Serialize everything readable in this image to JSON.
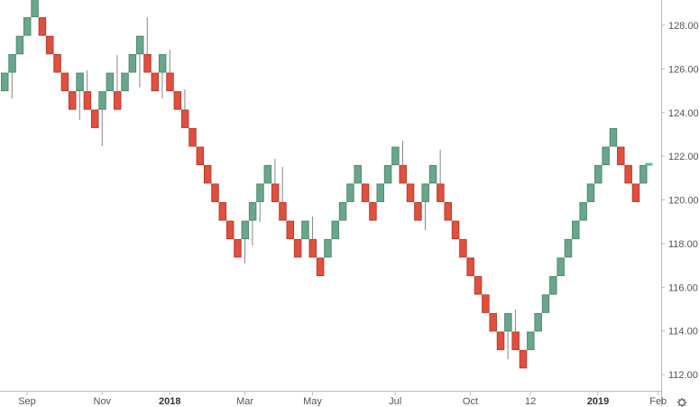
{
  "chart_data": {
    "type": "renko",
    "title": "",
    "xlabel": "",
    "ylabel": "",
    "ylim": [
      111.4,
      129.15
    ],
    "grid": false,
    "brick_size": 0.847,
    "colors": {
      "up": "#6aa68b",
      "up_border": "#4f8a70",
      "down": "#e0503f",
      "down_border": "#b93a2c",
      "current": "#3cc9a3",
      "axis": "#bbbbbb"
    },
    "y_ticks": [
      "112.00",
      "114.00",
      "116.00",
      "118.00",
      "120.00",
      "122.00",
      "124.00",
      "126.00",
      "128.00"
    ],
    "x_ticks": [
      {
        "label": "Sep",
        "bold": false,
        "col": 4
      },
      {
        "label": "Nov",
        "bold": false,
        "col": 14
      },
      {
        "label": "2018",
        "bold": true,
        "col": 23
      },
      {
        "label": "Mar",
        "bold": false,
        "col": 33
      },
      {
        "label": "May",
        "bold": false,
        "col": 42
      },
      {
        "label": "Jul",
        "bold": false,
        "col": 53
      },
      {
        "label": "Oct",
        "bold": false,
        "col": 63
      },
      {
        "label": "12",
        "bold": false,
        "col": 71
      },
      {
        "label": "2019",
        "bold": true,
        "col": 80
      },
      {
        "label": "Feb",
        "bold": false,
        "col": 88
      }
    ],
    "bricks": [
      {
        "low": 124.98,
        "dir": "up"
      },
      {
        "low": 125.83,
        "dir": "up",
        "wick_low": 124.65
      },
      {
        "low": 126.67,
        "dir": "up"
      },
      {
        "low": 127.52,
        "dir": "up"
      },
      {
        "low": 128.37,
        "dir": "up"
      },
      {
        "low": 127.52,
        "dir": "down"
      },
      {
        "low": 126.67,
        "dir": "down"
      },
      {
        "low": 125.83,
        "dir": "down"
      },
      {
        "low": 124.98,
        "dir": "down"
      },
      {
        "low": 124.13,
        "dir": "down"
      },
      {
        "low": 124.98,
        "dir": "up",
        "wick_low": 123.66
      },
      {
        "low": 124.13,
        "dir": "down",
        "wick_high": 125.93
      },
      {
        "low": 123.29,
        "dir": "down"
      },
      {
        "low": 124.13,
        "dir": "up",
        "wick_low": 122.46
      },
      {
        "low": 124.98,
        "dir": "up"
      },
      {
        "low": 124.13,
        "dir": "down",
        "wick_high": 126.64
      },
      {
        "low": 124.98,
        "dir": "up"
      },
      {
        "low": 125.83,
        "dir": "up"
      },
      {
        "low": 126.67,
        "dir": "up",
        "wick_low": 125.15
      },
      {
        "low": 125.83,
        "dir": "down",
        "wick_high": 128.37
      },
      {
        "low": 124.98,
        "dir": "down"
      },
      {
        "low": 125.83,
        "dir": "up",
        "wick_low": 124.65
      },
      {
        "low": 124.98,
        "dir": "down",
        "wick_high": 126.88
      },
      {
        "low": 124.13,
        "dir": "down"
      },
      {
        "low": 123.29,
        "dir": "down",
        "wick_high": 125.06
      },
      {
        "low": 122.44,
        "dir": "down"
      },
      {
        "low": 121.59,
        "dir": "down"
      },
      {
        "low": 120.75,
        "dir": "down"
      },
      {
        "low": 119.9,
        "dir": "down",
        "wick_high": 120.72
      },
      {
        "low": 119.05,
        "dir": "down"
      },
      {
        "low": 118.2,
        "dir": "down"
      },
      {
        "low": 117.36,
        "dir": "down"
      },
      {
        "low": 118.2,
        "dir": "up",
        "wick_low": 117.09
      },
      {
        "low": 119.05,
        "dir": "up",
        "wick_low": 117.91
      },
      {
        "low": 119.9,
        "dir": "up",
        "wick_low": 118.99
      },
      {
        "low": 120.75,
        "dir": "up"
      },
      {
        "low": 119.9,
        "dir": "down",
        "wick_high": 121.88
      },
      {
        "low": 119.05,
        "dir": "down",
        "wick_high": 121.51
      },
      {
        "low": 118.2,
        "dir": "down"
      },
      {
        "low": 117.36,
        "dir": "down"
      },
      {
        "low": 118.2,
        "dir": "up"
      },
      {
        "low": 117.36,
        "dir": "down",
        "wick_high": 119.24
      },
      {
        "low": 116.51,
        "dir": "down"
      },
      {
        "low": 117.36,
        "dir": "up"
      },
      {
        "low": 118.2,
        "dir": "up"
      },
      {
        "low": 119.05,
        "dir": "up"
      },
      {
        "low": 119.9,
        "dir": "up"
      },
      {
        "low": 120.75,
        "dir": "up"
      },
      {
        "low": 119.9,
        "dir": "down"
      },
      {
        "low": 119.05,
        "dir": "down"
      },
      {
        "low": 119.9,
        "dir": "up"
      },
      {
        "low": 120.75,
        "dir": "up"
      },
      {
        "low": 121.59,
        "dir": "up"
      },
      {
        "low": 120.75,
        "dir": "down",
        "wick_high": 122.71
      },
      {
        "low": 119.9,
        "dir": "down"
      },
      {
        "low": 119.05,
        "dir": "down"
      },
      {
        "low": 119.9,
        "dir": "up",
        "wick_low": 118.62
      },
      {
        "low": 120.75,
        "dir": "up"
      },
      {
        "low": 119.9,
        "dir": "down",
        "wick_high": 122.3
      },
      {
        "low": 119.05,
        "dir": "down"
      },
      {
        "low": 118.2,
        "dir": "down"
      },
      {
        "low": 117.36,
        "dir": "down"
      },
      {
        "low": 116.51,
        "dir": "down"
      },
      {
        "low": 115.66,
        "dir": "down"
      },
      {
        "low": 114.82,
        "dir": "down"
      },
      {
        "low": 113.97,
        "dir": "down"
      },
      {
        "low": 113.12,
        "dir": "down"
      },
      {
        "low": 113.97,
        "dir": "up",
        "wick_low": 112.7
      },
      {
        "low": 113.12,
        "dir": "down",
        "wick_high": 114.98
      },
      {
        "low": 112.28,
        "dir": "down"
      },
      {
        "low": 113.12,
        "dir": "up"
      },
      {
        "low": 113.97,
        "dir": "up"
      },
      {
        "low": 114.82,
        "dir": "up"
      },
      {
        "low": 115.66,
        "dir": "up"
      },
      {
        "low": 116.51,
        "dir": "up"
      },
      {
        "low": 117.36,
        "dir": "up"
      },
      {
        "low": 118.2,
        "dir": "up"
      },
      {
        "low": 119.05,
        "dir": "up"
      },
      {
        "low": 119.9,
        "dir": "up"
      },
      {
        "low": 120.75,
        "dir": "up"
      },
      {
        "low": 121.59,
        "dir": "up"
      },
      {
        "low": 122.44,
        "dir": "up"
      },
      {
        "low": 121.59,
        "dir": "down"
      },
      {
        "low": 120.75,
        "dir": "down"
      },
      {
        "low": 119.9,
        "dir": "down"
      },
      {
        "low": 120.75,
        "dir": "up"
      }
    ],
    "current_price": 121.63
  },
  "icons": {
    "settings": "gear-icon"
  }
}
